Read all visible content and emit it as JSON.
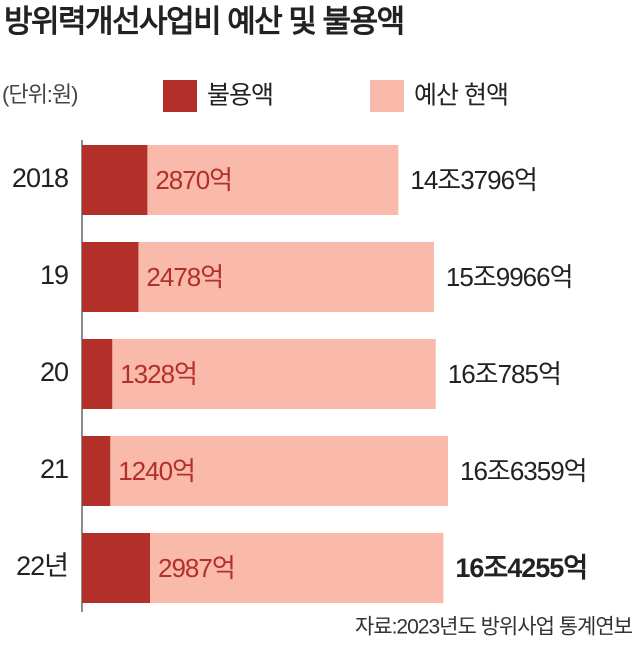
{
  "chart_data": {
    "type": "bar",
    "title": "방위력개선사업비 예산 및 불용액",
    "unit": "(단위:원)",
    "source": "자료:2023년도 방위사업 통계연보",
    "categories": [
      "2018",
      "19",
      "20",
      "21",
      "22년"
    ],
    "series": [
      {
        "name": "불용액",
        "color": "#b22f2a",
        "values": [
          2870,
          2478,
          1328,
          1240,
          2987
        ],
        "value_labels": [
          "2870억",
          "2478억",
          "1328억",
          "1240억",
          "2987억"
        ]
      },
      {
        "name": "예산 현액",
        "color": "#f9b9ab",
        "values": [
          143796,
          159966,
          160785,
          166359,
          164255
        ],
        "value_labels": [
          "14조3796억",
          "15조9966억",
          "16조785억",
          "16조6359억",
          "16조4255억"
        ]
      }
    ]
  }
}
